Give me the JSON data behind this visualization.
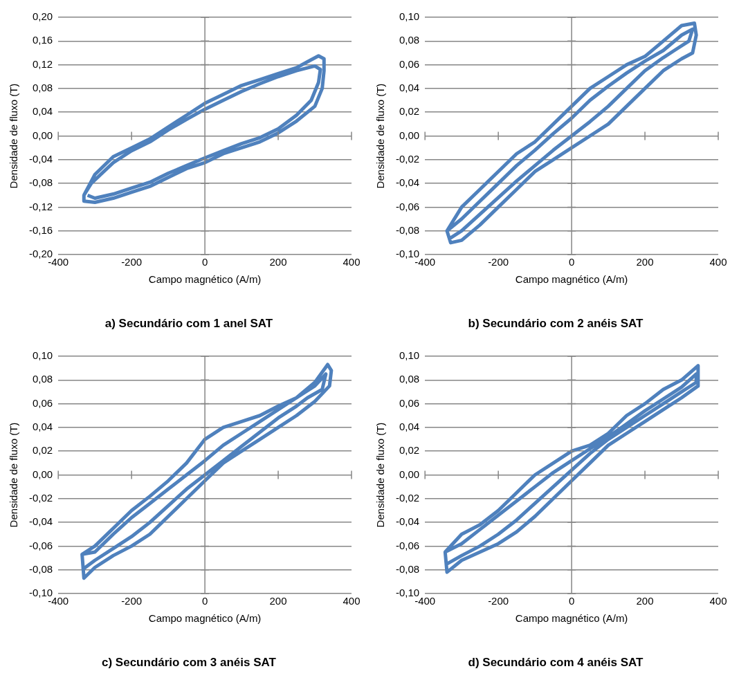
{
  "chart_data": [
    {
      "type": "line",
      "title": "a) Secundário com 1 anel SAT",
      "xlabel": "Campo magnético (A/m)",
      "ylabel": "Densidade de fluxo (T)",
      "xlim": [
        -400,
        400
      ],
      "xticks": [
        -400,
        -200,
        0,
        200,
        400
      ],
      "ref_lines": [
        {
          "axis": "x",
          "value": 0,
          "color": "#868686"
        }
      ],
      "ylim": [
        -0.2,
        0.2
      ],
      "yticks": [
        {
          "value": -0.2,
          "label": "-0,20"
        },
        {
          "value": -0.16,
          "label": "-0,16"
        },
        {
          "value": -0.12,
          "label": "-0,12"
        },
        {
          "value": -0.08,
          "label": "-0,08"
        },
        {
          "value": -0.04,
          "label": "-0,04"
        },
        {
          "value": 0,
          "label": "0,00"
        },
        {
          "value": 0.04,
          "label": "0,04"
        },
        {
          "value": 0.08,
          "label": "0,08"
        },
        {
          "value": 0.12,
          "label": "0,12"
        },
        {
          "value": 0.16,
          "label": "0,16"
        },
        {
          "value": 0.2,
          "label": "0,20"
        }
      ],
      "grid": "y",
      "series": [
        {
          "color": "#4f81bd",
          "x": [
            -330,
            -300,
            -250,
            -200,
            -150,
            -100,
            -50,
            0,
            50,
            100,
            150,
            200,
            250,
            280,
            310,
            325,
            325,
            320,
            300,
            250,
            200,
            150,
            100,
            50,
            0,
            -50,
            -100,
            -150,
            -200,
            -250,
            -300,
            -330,
            -330,
            -310,
            -250,
            -200,
            -150,
            -100,
            -50,
            0,
            50,
            100,
            150,
            200,
            250,
            300,
            315,
            310,
            290,
            250,
            200,
            150,
            100,
            50,
            0,
            -50,
            -100,
            -150,
            -200,
            -250,
            -300,
            -320
          ],
          "values": [
            -0.1,
            -0.065,
            -0.035,
            -0.02,
            -0.005,
            0.015,
            0.035,
            0.055,
            0.07,
            0.085,
            0.095,
            0.105,
            0.115,
            0.125,
            0.135,
            0.13,
            0.11,
            0.08,
            0.05,
            0.025,
            0.005,
            -0.01,
            -0.02,
            -0.03,
            -0.045,
            -0.055,
            -0.07,
            -0.085,
            -0.095,
            -0.105,
            -0.112,
            -0.11,
            -0.1,
            -0.08,
            -0.045,
            -0.025,
            -0.01,
            0.01,
            0.028,
            0.045,
            0.06,
            0.075,
            0.088,
            0.1,
            0.11,
            0.118,
            0.112,
            0.09,
            0.06,
            0.035,
            0.012,
            -0.003,
            -0.013,
            -0.025,
            -0.037,
            -0.05,
            -0.063,
            -0.078,
            -0.088,
            -0.098,
            -0.105,
            -0.1
          ]
        }
      ]
    },
    {
      "type": "line",
      "title": "b) Secundário com 2 anéis SAT",
      "xlabel": "Campo magnético (A/m)",
      "ylabel": "Densidade de fluxo (T)",
      "ref_lines": [
        {
          "axis": "x",
          "value": 0,
          "color": "#868686"
        }
      ],
      "xlim": [
        -400,
        400
      ],
      "xticks": [
        -400,
        -200,
        0,
        200,
        400
      ],
      "ylim": [
        -0.1,
        0.1
      ],
      "yticks": [
        {
          "value": -0.1,
          "label": "-0,10"
        },
        {
          "value": -0.08,
          "label": "-0,08"
        },
        {
          "value": -0.06,
          "label": "-0,06"
        },
        {
          "value": -0.04,
          "label": "-0,04"
        },
        {
          "value": -0.02,
          "label": "-0,02"
        },
        {
          "value": 0,
          "label": "0,00"
        },
        {
          "value": 0.02,
          "label": "0,02"
        },
        {
          "value": 0.04,
          "label": "0,04"
        },
        {
          "value": 0.06,
          "label": "0,06"
        },
        {
          "value": 0.08,
          "label": "0,08"
        },
        {
          "value": 0.1,
          "label": "0,10"
        }
      ],
      "grid": "y",
      "series": [
        {
          "color": "#4f81bd",
          "x": [
            -340,
            -300,
            -250,
            -200,
            -150,
            -100,
            -50,
            0,
            50,
            100,
            150,
            200,
            250,
            300,
            335,
            340,
            330,
            300,
            250,
            200,
            150,
            100,
            50,
            0,
            -50,
            -100,
            -150,
            -200,
            -250,
            -300,
            -330,
            -340,
            -300,
            -250,
            -200,
            -150,
            -100,
            -50,
            0,
            50,
            100,
            150,
            200,
            250,
            300,
            330,
            320,
            280,
            250,
            200,
            150,
            100,
            50,
            0,
            -50,
            -100,
            -150,
            -200,
            -250,
            -300,
            -335
          ],
          "values": [
            -0.08,
            -0.06,
            -0.045,
            -0.03,
            -0.015,
            -0.005,
            0.01,
            0.025,
            0.04,
            0.05,
            0.06,
            0.067,
            0.08,
            0.093,
            0.095,
            0.085,
            0.07,
            0.065,
            0.055,
            0.04,
            0.025,
            0.01,
            0,
            -0.01,
            -0.02,
            -0.03,
            -0.045,
            -0.06,
            -0.075,
            -0.088,
            -0.09,
            -0.08,
            -0.07,
            -0.055,
            -0.04,
            -0.025,
            -0.012,
            0.002,
            0.015,
            0.03,
            0.042,
            0.053,
            0.063,
            0.072,
            0.085,
            0.09,
            0.08,
            0.072,
            0.066,
            0.055,
            0.04,
            0.025,
            0.012,
            0,
            -0.012,
            -0.025,
            -0.038,
            -0.052,
            -0.066,
            -0.08,
            -0.087
          ]
        }
      ]
    },
    {
      "type": "line",
      "title": "c) Secundário com 3 anéis SAT",
      "xlabel": "Campo magnético (A/m)",
      "ylabel": "Densidade de fluxo (T)",
      "ref_lines": [
        {
          "axis": "x",
          "value": 0,
          "color": "#868686"
        }
      ],
      "xlim": [
        -400,
        400
      ],
      "xticks": [
        -400,
        -200,
        0,
        200,
        400
      ],
      "ylim": [
        -0.1,
        0.1
      ],
      "yticks": [
        {
          "value": -0.1,
          "label": "-0,10"
        },
        {
          "value": -0.08,
          "label": "-0,08"
        },
        {
          "value": -0.06,
          "label": "-0,06"
        },
        {
          "value": -0.04,
          "label": "-0,04"
        },
        {
          "value": -0.02,
          "label": "-0,02"
        },
        {
          "value": 0,
          "label": "0,00"
        },
        {
          "value": 0.02,
          "label": "0,02"
        },
        {
          "value": 0.04,
          "label": "0,04"
        },
        {
          "value": 0.06,
          "label": "0,06"
        },
        {
          "value": 0.08,
          "label": "0,08"
        },
        {
          "value": 0.1,
          "label": "0,10"
        }
      ],
      "grid": "y",
      "series": [
        {
          "color": "#4f81bd",
          "x": [
            -335,
            -300,
            -250,
            -200,
            -150,
            -100,
            -50,
            0,
            50,
            100,
            150,
            200,
            250,
            300,
            335,
            345,
            340,
            300,
            250,
            200,
            150,
            100,
            50,
            0,
            -50,
            -100,
            -150,
            -200,
            -250,
            -300,
            -330,
            -335,
            -300,
            -250,
            -200,
            -150,
            -100,
            -50,
            0,
            50,
            100,
            150,
            200,
            250,
            300,
            330,
            320,
            280,
            250,
            200,
            150,
            100,
            50,
            0,
            -50,
            -100,
            -150,
            -200,
            -250,
            -300,
            -335
          ],
          "values": [
            -0.067,
            -0.06,
            -0.045,
            -0.03,
            -0.018,
            -0.005,
            0.01,
            0.03,
            0.04,
            0.045,
            0.05,
            0.058,
            0.065,
            0.078,
            0.093,
            0.088,
            0.075,
            0.062,
            0.05,
            0.04,
            0.03,
            0.02,
            0.01,
            -0.005,
            -0.02,
            -0.035,
            -0.05,
            -0.06,
            -0.068,
            -0.078,
            -0.087,
            -0.067,
            -0.065,
            -0.05,
            -0.036,
            -0.024,
            -0.012,
            0,
            0.012,
            0.025,
            0.035,
            0.045,
            0.055,
            0.065,
            0.075,
            0.085,
            0.072,
            0.065,
            0.058,
            0.048,
            0.036,
            0.024,
            0.012,
            0,
            -0.012,
            -0.026,
            -0.04,
            -0.052,
            -0.062,
            -0.072,
            -0.08
          ]
        }
      ]
    },
    {
      "type": "line",
      "title": "d) Secundário com 4 anéis SAT",
      "xlabel": "Campo magnético (A/m)",
      "ylabel": "Densidade de fluxo (T)",
      "ref_lines": [
        {
          "axis": "x",
          "value": 0,
          "color": "#868686"
        }
      ],
      "xlim": [
        -400,
        400
      ],
      "xticks": [
        -400,
        -200,
        0,
        200,
        400
      ],
      "ylim": [
        -0.1,
        0.1
      ],
      "yticks": [
        {
          "value": -0.1,
          "label": "-0,10"
        },
        {
          "value": -0.08,
          "label": "-0,08"
        },
        {
          "value": -0.06,
          "label": "-0,06"
        },
        {
          "value": -0.04,
          "label": "-0,04"
        },
        {
          "value": -0.02,
          "label": "-0,02"
        },
        {
          "value": 0,
          "label": "0,00"
        },
        {
          "value": 0.02,
          "label": "0,02"
        },
        {
          "value": 0.04,
          "label": "0,04"
        },
        {
          "value": 0.06,
          "label": "0,06"
        },
        {
          "value": 0.08,
          "label": "0,08"
        },
        {
          "value": 0.1,
          "label": "0,10"
        }
      ],
      "grid": "y",
      "series": [
        {
          "color": "#4f81bd",
          "x": [
            -345,
            -300,
            -250,
            -200,
            -150,
            -100,
            -50,
            0,
            50,
            100,
            150,
            200,
            250,
            300,
            345,
            345,
            300,
            250,
            200,
            150,
            100,
            50,
            0,
            -50,
            -100,
            -150,
            -200,
            -250,
            -300,
            -340,
            -345,
            -300,
            -250,
            -200,
            -150,
            -100,
            -50,
            0,
            50,
            100,
            150,
            200,
            250,
            300,
            340,
            340,
            300,
            250,
            200,
            150,
            100,
            50,
            0,
            -50,
            -100,
            -150,
            -200,
            -250,
            -300,
            -340
          ],
          "values": [
            -0.065,
            -0.05,
            -0.042,
            -0.03,
            -0.015,
            0,
            0.01,
            0.02,
            0.025,
            0.035,
            0.05,
            0.06,
            0.072,
            0.08,
            0.092,
            0.075,
            0.065,
            0.055,
            0.045,
            0.035,
            0.025,
            0.01,
            -0.005,
            -0.02,
            -0.035,
            -0.048,
            -0.058,
            -0.065,
            -0.072,
            -0.082,
            -0.065,
            -0.058,
            -0.046,
            -0.034,
            -0.022,
            -0.01,
            0.002,
            0.012,
            0.022,
            0.032,
            0.043,
            0.054,
            0.064,
            0.074,
            0.085,
            0.078,
            0.07,
            0.06,
            0.05,
            0.04,
            0.03,
            0.018,
            0.004,
            -0.01,
            -0.024,
            -0.038,
            -0.05,
            -0.06,
            -0.068,
            -0.075
          ]
        }
      ]
    }
  ]
}
